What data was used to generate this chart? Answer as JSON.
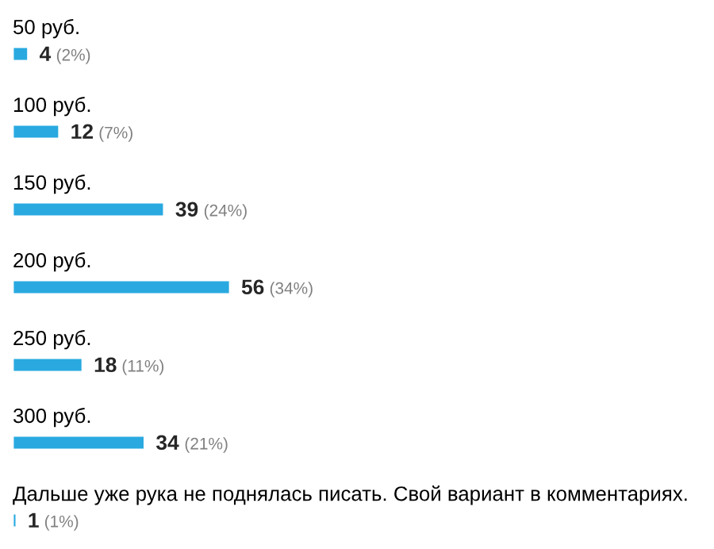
{
  "chart_data": {
    "type": "bar",
    "orientation": "horizontal",
    "categories": [
      "50 руб.",
      "100 руб.",
      "150 руб.",
      "200 руб.",
      "250 руб.",
      "300 руб.",
      "Дальше уже рука не поднялась писать. Свой вариант в комментариях."
    ],
    "values": [
      4,
      12,
      39,
      56,
      18,
      34,
      1
    ],
    "color": "#29a9e0",
    "data_labels": true,
    "annotations": [
      {
        "text": "(2%)",
        "x": 4,
        "y": "50 руб."
      },
      {
        "text": "(7%)",
        "x": 12,
        "y": "100 руб."
      },
      {
        "text": "(24%)",
        "x": 39,
        "y": "150 руб."
      },
      {
        "text": "(34%)",
        "x": 56,
        "y": "200 руб."
      },
      {
        "text": "(11%)",
        "x": 18,
        "y": "250 руб."
      },
      {
        "text": "(21%)",
        "x": 34,
        "y": "300 руб."
      },
      {
        "text": "(1%)",
        "x": 1,
        "y": "Дальше уже рука не поднялась писать. Свой вариант в комментариях."
      }
    ]
  }
}
